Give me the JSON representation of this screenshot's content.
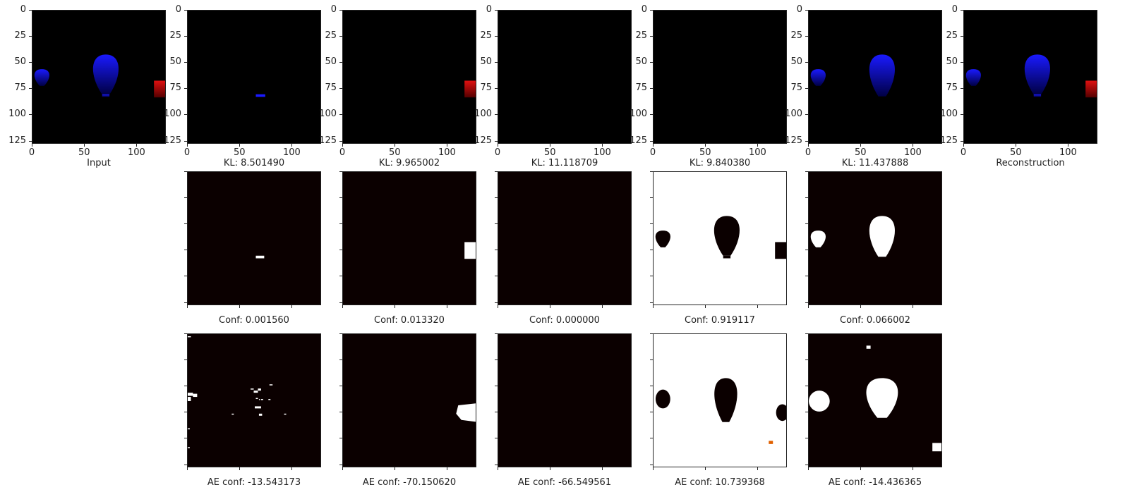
{
  "chart_data": {
    "type": "image-grid",
    "axis": {
      "xticks": [
        "0",
        "50",
        "100"
      ],
      "yticks": [
        "0",
        "25",
        "50",
        "75",
        "100",
        "125"
      ],
      "range": [
        0,
        128
      ]
    },
    "colors": {
      "background": "#000000",
      "heat_dark": "#0b0000",
      "heat_bright": "#ffffff",
      "balloon_blue": "#1a1aff",
      "box_red": "#e01010"
    },
    "row1": [
      {
        "caption": "Input",
        "content": "scene-full"
      },
      {
        "caption": "KL: 8.501490",
        "content": "slot-small-balloon"
      },
      {
        "caption": "KL: 9.965002",
        "content": "slot-red-box"
      },
      {
        "caption": "KL: 11.118709",
        "content": "slot-empty"
      },
      {
        "caption": "KL: 9.840380",
        "content": "slot-empty"
      },
      {
        "caption": "KL: 11.437888",
        "content": "slot-balloons"
      },
      {
        "caption": "Reconstruction",
        "content": "scene-full"
      }
    ],
    "row2": [
      {
        "caption": "Conf: 0.001560",
        "content": "mask-small"
      },
      {
        "caption": "Conf: 0.013320",
        "content": "mask-box"
      },
      {
        "caption": "Conf: 0.000000",
        "content": "mask-empty"
      },
      {
        "caption": "Conf: 0.919117",
        "content": "mask-inverted"
      },
      {
        "caption": "Conf: 0.066002",
        "content": "mask-balloons"
      }
    ],
    "row3": [
      {
        "caption": "AE conf: -13.543173",
        "content": "ae-noise"
      },
      {
        "caption": "AE conf: -70.150620",
        "content": "ae-box"
      },
      {
        "caption": "AE conf: -66.549561",
        "content": "ae-empty"
      },
      {
        "caption": "AE conf: 10.739368",
        "content": "ae-inverted"
      },
      {
        "caption": "AE conf: -14.436365",
        "content": "ae-balloons"
      }
    ]
  }
}
